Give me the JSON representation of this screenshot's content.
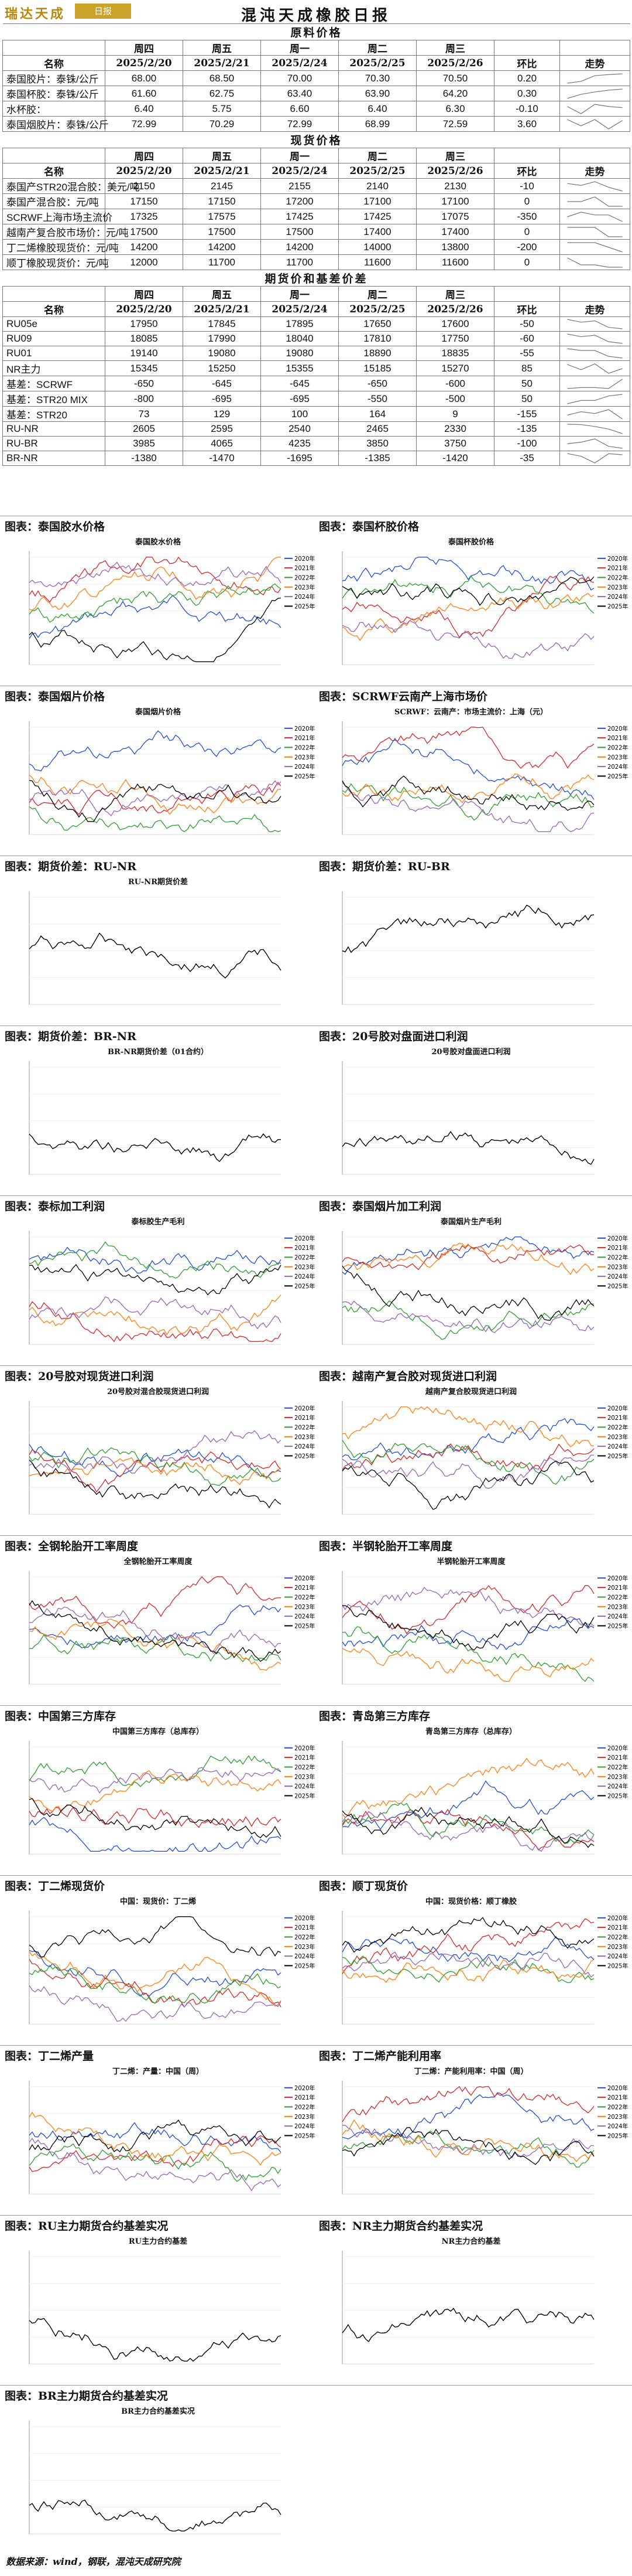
{
  "header": {
    "brand": "瑞达天成",
    "brand_seal": "日报",
    "title": "混沌天成橡胶日报"
  },
  "dates": [
    "2025/2/20",
    "2025/2/21",
    "2025/2/24",
    "2025/2/25",
    "2025/2/26"
  ],
  "weekdays": [
    "周四",
    "周五",
    "周一",
    "周二",
    "周三"
  ],
  "col_name": "名称",
  "col_change": "环比",
  "col_trend": "走势",
  "raw": {
    "title": "原料价格",
    "rows": [
      {
        "name": "泰国胶片：泰铢/公斤",
        "v": [
          "68.00",
          "68.50",
          "70.00",
          "70.30",
          "70.50"
        ],
        "chg": "0.20"
      },
      {
        "name": "泰国杯胶：泰铢/公斤",
        "v": [
          "61.60",
          "62.75",
          "63.40",
          "63.90",
          "64.20"
        ],
        "chg": "0.30"
      },
      {
        "name": "水杯胶：",
        "v": [
          "6.40",
          "5.75",
          "6.60",
          "6.40",
          "6.30"
        ],
        "chg": "-0.10"
      },
      {
        "name": "泰国烟胶片：泰铢/公斤",
        "v": [
          "72.99",
          "70.29",
          "72.99",
          "68.99",
          "72.59"
        ],
        "chg": "3.60"
      }
    ]
  },
  "spot": {
    "title": "现货价格",
    "rows": [
      {
        "name": "泰国产STR20混合胶：美元/吨",
        "v": [
          "2150",
          "2145",
          "2155",
          "2140",
          "2130"
        ],
        "chg": "-10"
      },
      {
        "name": "泰国产混合胶：元/吨",
        "v": [
          "17150",
          "17150",
          "17200",
          "17100",
          "17100"
        ],
        "chg": "0"
      },
      {
        "name": "SCRWF上海市场主流价",
        "v": [
          "17325",
          "17575",
          "17425",
          "17425",
          "17075"
        ],
        "chg": "-350"
      },
      {
        "name": "越南产复合胶市场价：元/吨",
        "v": [
          "17500",
          "17500",
          "17500",
          "17400",
          "17400"
        ],
        "chg": "0"
      },
      {
        "name": "丁二烯橡胶现货价：元/吨",
        "v": [
          "14200",
          "14200",
          "14200",
          "14000",
          "13800"
        ],
        "chg": "-200"
      },
      {
        "name": "顺丁橡胶现货价：元/吨",
        "v": [
          "12000",
          "11700",
          "11700",
          "11600",
          "11600"
        ],
        "chg": "0"
      }
    ]
  },
  "futures": {
    "title": "期货价和基差价差",
    "rows": [
      {
        "name": "RU05e",
        "v": [
          "17950",
          "17845",
          "17895",
          "17650",
          "17600"
        ],
        "chg": "-50"
      },
      {
        "name": "RU09",
        "v": [
          "18085",
          "17990",
          "18040",
          "17810",
          "17750"
        ],
        "chg": "-60"
      },
      {
        "name": "RU01",
        "v": [
          "19140",
          "19080",
          "19080",
          "18890",
          "18835"
        ],
        "chg": "-55"
      },
      {
        "name": "NR主力",
        "v": [
          "15345",
          "15250",
          "15355",
          "15185",
          "15270"
        ],
        "chg": "85"
      },
      {
        "name": "基差：SCRWF",
        "v": [
          "-650",
          "-645",
          "-645",
          "-650",
          "-600"
        ],
        "chg": "50"
      },
      {
        "name": "基差：STR20 MIX",
        "v": [
          "-800",
          "-695",
          "-695",
          "-550",
          "-500"
        ],
        "chg": "50"
      },
      {
        "name": "基差：STR20",
        "v": [
          "73",
          "129",
          "100",
          "164",
          "9"
        ],
        "chg": "-155"
      },
      {
        "name": "RU-NR",
        "v": [
          "2605",
          "2595",
          "2540",
          "2465",
          "2330"
        ],
        "chg": "-135"
      },
      {
        "name": "RU-BR",
        "v": [
          "3985",
          "4065",
          "4235",
          "3850",
          "3750"
        ],
        "chg": "-100"
      },
      {
        "name": "BR-NR",
        "v": [
          "-1380",
          "-1470",
          "-1695",
          "-1385",
          "-1420"
        ],
        "chg": "-35"
      }
    ]
  },
  "charts": [
    {
      "h1": "图表：泰国胶水价格",
      "h2": "图表：泰国杯胶价格",
      "t1": "泰国胶水价格",
      "t2": "泰国杯胶价格"
    },
    {
      "h1": "图表：泰国烟片价格",
      "h2": "图表：SCRWF云南产上海市场价",
      "t1": "泰国烟片价格",
      "t2": "SCRWF：云南产：市场主流价：上海（元）"
    },
    {
      "h1": "图表：期货价差：RU-NR",
      "h2": "图表：期货价差：RU-BR",
      "t1": "RU-NR期货价差",
      "t2": ""
    },
    {
      "h1": "图表：期货价差：BR-NR",
      "h2": "图表：20号胶对盘面进口利润",
      "t1": "BR-NR期货价差（01合约）",
      "t2": "20号胶对盘面进口利润"
    },
    {
      "h1": "图表：泰标加工利润",
      "h2": "图表：泰国烟片加工利润",
      "t1": "泰标胶生产毛利",
      "t2": "泰国烟片生产毛利"
    },
    {
      "h1": "图表：20号胶对现货进口利润",
      "h2": "图表：越南产复合胶对现货进口利润",
      "t1": "20号胶对混合胶现货进口利润",
      "t2": "越南产复合胶现货进口利润"
    },
    {
      "h1": "图表：全钢轮胎开工率周度",
      "h2": "图表：半钢轮胎开工率周度",
      "t1": "全钢轮胎开工率周度",
      "t2": "半钢轮胎开工率周度"
    },
    {
      "h1": "图表：中国第三方库存",
      "h2": "图表：青岛第三方库存",
      "t1": "中国第三方库存（总库存）",
      "t2": "青岛第三方库存（总库存）"
    },
    {
      "h1": "图表：丁二烯现货价",
      "h2": "图表：顺丁现货价",
      "t1": "中国：现货价：丁二烯",
      "t2": "中国：现货价格：顺丁橡胶"
    },
    {
      "h1": "图表：丁二烯产量",
      "h2": "图表：丁二烯产能利用率",
      "t1": "丁二烯：产量：中国（周）",
      "t2": "丁二烯：产能利用率：中国（周）"
    },
    {
      "h1": "图表：RU主力期货合约基差实况",
      "h2": "图表：NR主力期货合约基差实况",
      "t1": "RU主力合约基差",
      "t2": "NR主力合约基差"
    },
    {
      "h1": "图表：BR主力期货合约基差实况",
      "h2": "",
      "t1": "BR主力合约基差实况",
      "t2": ""
    }
  ],
  "legend_years": [
    "2020年",
    "2021年",
    "2022年",
    "2023年",
    "2024年",
    "2025年"
  ],
  "series_colors": [
    "#1f4fd8",
    "#d62728",
    "#2ca02c",
    "#ff7f0e",
    "#9467bd",
    "#000000"
  ],
  "footer": "数据来源：wind，钢联，混沌天成研究院"
}
